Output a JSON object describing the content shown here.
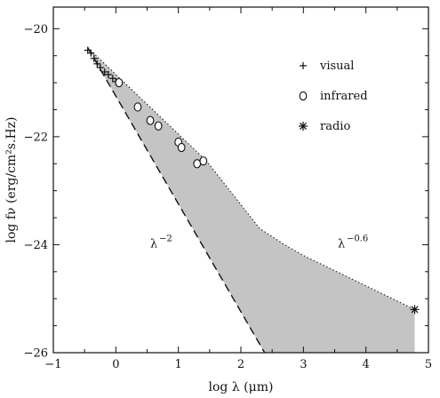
{
  "chart_data": {
    "type": "scatter",
    "xlabel": "log λ (μm)",
    "ylabel": "log fν (erg/cm²s.Hz)",
    "xlim": [
      -1,
      5
    ],
    "ylim": [
      -26,
      -19.6
    ],
    "xticks": [
      -1,
      0,
      1,
      2,
      3,
      4,
      5
    ],
    "xtick_labels": [
      "−1",
      "0",
      "1",
      "2",
      "3",
      "4",
      "5"
    ],
    "yticks": [
      -20,
      -22,
      -24,
      -26
    ],
    "ytick_labels": [
      "−20",
      "−22",
      "−24",
      "−26"
    ],
    "grid": false,
    "legend_position": "top-right",
    "series": [
      {
        "name": "visual",
        "marker": "plus",
        "x": [
          -0.45,
          -0.4,
          -0.35,
          -0.3,
          -0.25,
          -0.18,
          -0.12,
          -0.05,
          0.0
        ],
        "y": [
          -20.4,
          -20.45,
          -20.55,
          -20.65,
          -20.72,
          -20.8,
          -20.85,
          -20.92,
          -20.98
        ]
      },
      {
        "name": "infrared",
        "marker": "circle",
        "x": [
          0.05,
          0.35,
          0.55,
          0.68,
          1.0,
          1.05,
          1.3,
          1.4
        ],
        "y": [
          -21.0,
          -21.45,
          -21.7,
          -21.8,
          -22.1,
          -22.2,
          -22.5,
          -22.45
        ]
      },
      {
        "name": "radio",
        "marker": "asterisk",
        "x": [
          4.78
        ],
        "y": [
          -25.2
        ]
      }
    ],
    "shaded_region": {
      "upper": {
        "x": [
          -0.45,
          1.45,
          2.3,
          2.7,
          3.0,
          4.78
        ],
        "y": [
          -20.35,
          -22.45,
          -23.7,
          -24.0,
          -24.2,
          -25.2
        ]
      },
      "lower": {
        "x": [
          -0.45,
          2.38
        ],
        "y": [
          -20.35,
          -26.0
        ]
      },
      "right_x": 4.78,
      "color": "#c4c4c4"
    },
    "annotations": [
      {
        "base": "λ",
        "exponent": "−2",
        "x": 0.55,
        "y": -24.05
      },
      {
        "base": "λ",
        "exponent": "−0.6",
        "x": 3.55,
        "y": -24.05
      }
    ]
  }
}
